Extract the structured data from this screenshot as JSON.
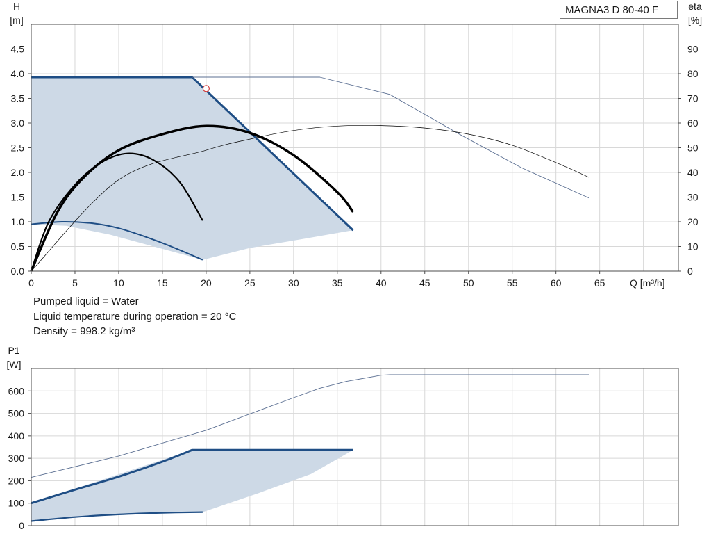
{
  "info": {
    "liquid": "Pumped liquid = Water",
    "temperature": "Liquid temperature during operation = 20 °C",
    "density": "Density = 998.2 kg/m³"
  },
  "colors": {
    "control_line": "#1f4e85",
    "area_fill": "#cdd9e6",
    "curve_black": "#000000",
    "max_line": "#5b6f92",
    "grid": "#d8d8d8"
  },
  "chart_data": [
    {
      "type": "line",
      "legend": "MAGNA3 D 80-40 F",
      "xlabel": "Q [m³/h]",
      "ylabel_left": [
        "H",
        "[m]"
      ],
      "ylabel_right": [
        "eta",
        "[%]"
      ],
      "xlim": [
        0,
        74
      ],
      "ylim": [
        0,
        5
      ],
      "ylim_right": [
        0,
        100
      ],
      "x_ticks": [
        0,
        5,
        10,
        15,
        20,
        25,
        30,
        35,
        40,
        45,
        50,
        55,
        60,
        65
      ],
      "y_ticks": [
        0.0,
        0.5,
        1.0,
        1.5,
        2.0,
        2.5,
        3.0,
        3.5,
        4.0,
        4.5
      ],
      "y_tick_labels": [
        "0.0",
        "0.5",
        "1.0",
        "1.5",
        "2.0",
        "2.5",
        "3.0",
        "3.5",
        "4.0",
        "4.5"
      ],
      "y_right_ticks": [
        0,
        10,
        20,
        30,
        40,
        50,
        60,
        70,
        80,
        90
      ],
      "grid": true,
      "shaded_area": [
        [
          0,
          3.93
        ],
        [
          18.4,
          3.93
        ],
        [
          36.8,
          0.83
        ],
        [
          31,
          0.65
        ],
        [
          25,
          0.47
        ],
        [
          19.6,
          0.23
        ],
        [
          14,
          0.5
        ],
        [
          9,
          0.74
        ],
        [
          4,
          0.92
        ],
        [
          0,
          0.95
        ]
      ],
      "series": [
        {
          "role": "control-curve",
          "axis": "left",
          "x": [
            0,
            18.4,
            36.8
          ],
          "y": [
            3.93,
            3.93,
            0.83
          ]
        },
        {
          "role": "min-curve",
          "axis": "left",
          "x": [
            0,
            3.5,
            7,
            10,
            13,
            16,
            19.6
          ],
          "y": [
            0.95,
            1.0,
            0.97,
            0.87,
            0.7,
            0.5,
            0.23
          ]
        },
        {
          "role": "max-curve",
          "axis": "left",
          "x": [
            18.4,
            25,
            33,
            41,
            49,
            56,
            63.8
          ],
          "y": [
            3.93,
            3.93,
            3.93,
            3.58,
            2.77,
            2.1,
            1.48
          ]
        },
        {
          "role": "efficiency",
          "axis": "right",
          "x": [
            0,
            10,
            20,
            25,
            30,
            35,
            40,
            45,
            50,
            55,
            60,
            63.8
          ],
          "y": [
            0,
            37,
            49,
            53.5,
            57,
            58.8,
            59,
            58,
            55.5,
            51,
            44,
            38
          ]
        },
        {
          "role": "efficiency-min",
          "axis": "right",
          "x": [
            0,
            2,
            5,
            8,
            11,
            14,
            17,
            19.6
          ],
          "y": [
            0,
            20,
            35,
            44,
            47.7,
            45,
            36,
            20.5
          ]
        },
        {
          "role": "efficiency-operating",
          "axis": "right",
          "x": [
            0,
            3,
            6,
            10,
            15,
            20,
            25,
            30,
            35,
            36.8
          ],
          "y": [
            0,
            24,
            38,
            49,
            55.5,
            58.8,
            56,
            47,
            32,
            24
          ]
        }
      ],
      "operating_point": {
        "x": 20,
        "y": 3.7
      }
    },
    {
      "type": "line",
      "ylabel_left": [
        "P1",
        "[W]"
      ],
      "xlim": [
        0,
        74
      ],
      "ylim": [
        0,
        700
      ],
      "y_ticks": [
        0,
        100,
        200,
        300,
        400,
        500,
        600
      ],
      "grid": true,
      "shaded_area": [
        [
          0,
          100
        ],
        [
          18.4,
          337
        ],
        [
          36.8,
          337
        ],
        [
          32,
          230
        ],
        [
          26,
          145
        ],
        [
          19.6,
          60
        ],
        [
          10,
          52
        ],
        [
          5,
          40
        ],
        [
          0,
          20
        ]
      ],
      "series": [
        {
          "role": "power-control",
          "x": [
            0,
            5,
            10,
            15,
            18.4,
            36.8
          ],
          "y": [
            100,
            160,
            218,
            285,
            337,
            337
          ]
        },
        {
          "role": "power-min",
          "x": [
            0,
            5,
            10,
            15,
            19.6
          ],
          "y": [
            20,
            38,
            50,
            57,
            60
          ]
        },
        {
          "role": "power-max",
          "x": [
            0,
            10,
            20,
            30,
            33,
            36,
            40,
            41,
            63.8
          ],
          "y": [
            215,
            310,
            425,
            570,
            612,
            642,
            670,
            672,
            672
          ]
        }
      ]
    }
  ]
}
